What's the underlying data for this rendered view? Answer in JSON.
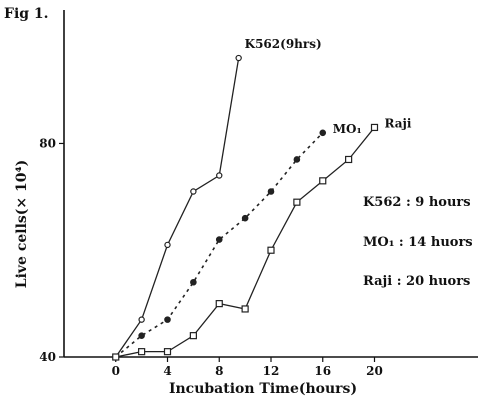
{
  "figure_label": "Fig 1.",
  "notes": [
    "K562 : 9 hours",
    "MO₁ : 14 huors",
    "Raji : 20 huors"
  ],
  "chart_data": {
    "type": "line",
    "title": "",
    "xlabel": "Incubation Time(hours)",
    "ylabel": "Live cells(× 10⁴)",
    "x_ticks": [
      0,
      4,
      8,
      12,
      16,
      20
    ],
    "y_ticks": [
      40,
      80
    ],
    "xlim": [
      -4,
      28
    ],
    "ylim": [
      40,
      105
    ],
    "grid": false,
    "series": [
      {
        "name": "K562(9hrs)",
        "marker": "open-circle",
        "color": "#222222",
        "x": [
          0,
          2,
          4,
          6,
          8,
          9.5
        ],
        "y": [
          40,
          47,
          61,
          71,
          74,
          96
        ]
      },
      {
        "name": "MO₁",
        "marker": "filled-circle",
        "color": "#222222",
        "x": [
          0,
          2,
          4,
          6,
          8,
          10,
          12,
          14,
          16
        ],
        "y": [
          40,
          44,
          47,
          54,
          62,
          66,
          71,
          77,
          82
        ]
      },
      {
        "name": "Raji",
        "marker": "open-square",
        "color": "#222222",
        "x": [
          0,
          2,
          4,
          6,
          8,
          10,
          12,
          14,
          16,
          18,
          20
        ],
        "y": [
          40,
          41,
          41,
          44,
          50,
          49,
          60,
          69,
          73,
          77,
          83
        ]
      }
    ]
  }
}
